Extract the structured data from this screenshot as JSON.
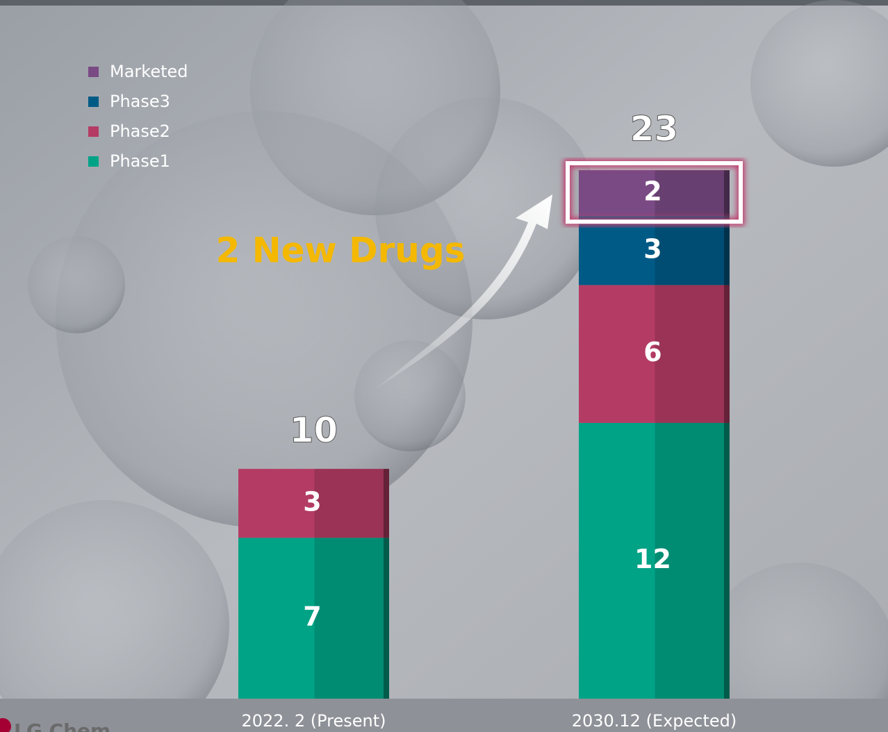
{
  "chart_data": {
    "type": "stacked_bar",
    "categories": [
      "2022. 2 (Present)",
      "2030.12 (Expected)"
    ],
    "series": [
      {
        "name": "Phase1",
        "color": "#00a386",
        "values": [
          7,
          12
        ]
      },
      {
        "name": "Phase2",
        "color": "#b43c64",
        "values": [
          3,
          6
        ]
      },
      {
        "name": "Phase3",
        "color": "#005a86",
        "values": [
          null,
          3
        ]
      },
      {
        "name": "Marketed",
        "color": "#7a4a84",
        "values": [
          null,
          2
        ]
      }
    ],
    "totals": [
      10,
      23
    ],
    "ylim": [
      0,
      23
    ],
    "annotation": "2 New Drugs",
    "logo": "LG Chem"
  }
}
